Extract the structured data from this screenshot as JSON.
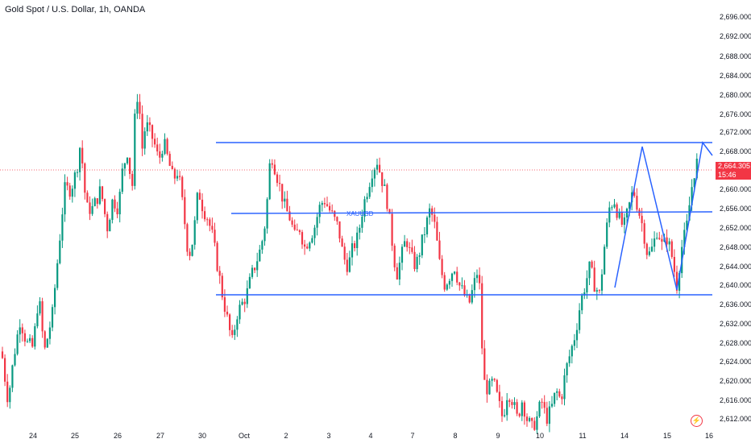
{
  "title": "Gold Spot / U.S. Dollar, 1h, OANDA",
  "last_price": "2,664.305",
  "countdown": "15:46",
  "annotation": "XAUUSD",
  "colors": {
    "up": "#089981",
    "down": "#f23645",
    "drawing": "#2962ff",
    "axis_text": "#131722"
  },
  "chart_data": {
    "type": "candlestick",
    "y_ticks": [
      "2,696.000",
      "2,692.000",
      "2,688.000",
      "2,684.000",
      "2,680.000",
      "2,676.000",
      "2,672.000",
      "2,668.000",
      "2,660.000",
      "2,656.000",
      "2,652.000",
      "2,648.000",
      "2,644.000",
      "2,640.000",
      "2,636.000",
      "2,632.000",
      "2,628.000",
      "2,624.000",
      "2,620.000",
      "2,616.000",
      "2,612.000"
    ],
    "x_ticks": [
      "24",
      "25",
      "26",
      "27",
      "30",
      "Oct",
      "2",
      "3",
      "4",
      "7",
      "8",
      "9",
      "10",
      "11",
      "14",
      "15",
      "16"
    ],
    "ylim": [
      2610,
      2698
    ],
    "horizontal_lines": [
      2668.4,
      2654.8,
      2637.8
    ],
    "zigzag": [
      [
        2639.2
      ],
      [
        2669
      ],
      [
        2639.2
      ],
      [
        2669
      ],
      [
        2666
      ]
    ],
    "anchors": [
      {
        "x": 0,
        "y": 2629
      },
      {
        "x": 5,
        "y": 2622
      },
      {
        "x": 10,
        "y": 2616
      },
      {
        "x": 18,
        "y": 2626
      },
      {
        "x": 25,
        "y": 2633
      },
      {
        "x": 33,
        "y": 2628
      },
      {
        "x": 41,
        "y": 2627
      },
      {
        "x": 48,
        "y": 2638
      },
      {
        "x": 55,
        "y": 2626
      },
      {
        "x": 65,
        "y": 2634
      },
      {
        "x": 73,
        "y": 2648
      },
      {
        "x": 80,
        "y": 2660
      },
      {
        "x": 88,
        "y": 2660
      },
      {
        "x": 95,
        "y": 2664
      },
      {
        "x": 100,
        "y": 2670
      },
      {
        "x": 107,
        "y": 2656
      },
      {
        "x": 115,
        "y": 2656
      },
      {
        "x": 125,
        "y": 2660
      },
      {
        "x": 133,
        "y": 2652
      },
      {
        "x": 140,
        "y": 2658
      },
      {
        "x": 147,
        "y": 2656
      },
      {
        "x": 152,
        "y": 2664
      },
      {
        "x": 158,
        "y": 2668
      },
      {
        "x": 164,
        "y": 2660
      },
      {
        "x": 168,
        "y": 2678
      },
      {
        "x": 172,
        "y": 2681
      },
      {
        "x": 176,
        "y": 2668
      },
      {
        "x": 181,
        "y": 2674
      },
      {
        "x": 186,
        "y": 2672
      },
      {
        "x": 191,
        "y": 2670
      },
      {
        "x": 197,
        "y": 2666
      },
      {
        "x": 203,
        "y": 2670
      },
      {
        "x": 209,
        "y": 2666
      },
      {
        "x": 215,
        "y": 2662
      },
      {
        "x": 221,
        "y": 2664
      },
      {
        "x": 228,
        "y": 2655
      },
      {
        "x": 234,
        "y": 2646
      },
      {
        "x": 240,
        "y": 2650
      },
      {
        "x": 246,
        "y": 2660
      },
      {
        "x": 252,
        "y": 2656
      },
      {
        "x": 258,
        "y": 2654
      },
      {
        "x": 264,
        "y": 2650
      },
      {
        "x": 270,
        "y": 2644
      },
      {
        "x": 276,
        "y": 2638
      },
      {
        "x": 282,
        "y": 2633
      },
      {
        "x": 288,
        "y": 2628
      },
      {
        "x": 294,
        "y": 2634
      },
      {
        "x": 300,
        "y": 2636
      },
      {
        "x": 306,
        "y": 2638
      },
      {
        "x": 312,
        "y": 2642
      },
      {
        "x": 318,
        "y": 2645
      },
      {
        "x": 324,
        "y": 2648
      },
      {
        "x": 330,
        "y": 2654
      },
      {
        "x": 336,
        "y": 2668
      },
      {
        "x": 342,
        "y": 2664
      },
      {
        "x": 348,
        "y": 2660
      },
      {
        "x": 354,
        "y": 2656
      },
      {
        "x": 360,
        "y": 2654
      },
      {
        "x": 366,
        "y": 2650
      },
      {
        "x": 372,
        "y": 2652
      },
      {
        "x": 378,
        "y": 2648
      },
      {
        "x": 384,
        "y": 2650
      },
      {
        "x": 390,
        "y": 2652
      },
      {
        "x": 396,
        "y": 2656
      },
      {
        "x": 402,
        "y": 2658
      },
      {
        "x": 408,
        "y": 2656
      },
      {
        "x": 414,
        "y": 2654
      },
      {
        "x": 420,
        "y": 2652
      },
      {
        "x": 426,
        "y": 2646
      },
      {
        "x": 432,
        "y": 2644
      },
      {
        "x": 438,
        "y": 2648
      },
      {
        "x": 444,
        "y": 2650
      },
      {
        "x": 450,
        "y": 2656
      },
      {
        "x": 456,
        "y": 2660
      },
      {
        "x": 462,
        "y": 2664
      },
      {
        "x": 468,
        "y": 2666
      },
      {
        "x": 474,
        "y": 2662
      },
      {
        "x": 480,
        "y": 2658
      },
      {
        "x": 486,
        "y": 2650
      },
      {
        "x": 492,
        "y": 2642
      },
      {
        "x": 498,
        "y": 2646
      },
      {
        "x": 504,
        "y": 2650
      },
      {
        "x": 510,
        "y": 2646
      },
      {
        "x": 516,
        "y": 2644
      },
      {
        "x": 522,
        "y": 2648
      },
      {
        "x": 528,
        "y": 2652
      },
      {
        "x": 534,
        "y": 2656
      },
      {
        "x": 540,
        "y": 2652
      },
      {
        "x": 546,
        "y": 2644
      },
      {
        "x": 552,
        "y": 2640
      },
      {
        "x": 558,
        "y": 2642
      },
      {
        "x": 564,
        "y": 2644
      },
      {
        "x": 570,
        "y": 2640
      },
      {
        "x": 576,
        "y": 2638
      },
      {
        "x": 582,
        "y": 2636
      },
      {
        "x": 588,
        "y": 2640
      },
      {
        "x": 594,
        "y": 2644
      },
      {
        "x": 600,
        "y": 2620
      },
      {
        "x": 606,
        "y": 2618
      },
      {
        "x": 612,
        "y": 2620
      },
      {
        "x": 618,
        "y": 2616
      },
      {
        "x": 624,
        "y": 2612
      },
      {
        "x": 630,
        "y": 2618
      },
      {
        "x": 636,
        "y": 2616
      },
      {
        "x": 642,
        "y": 2612
      },
      {
        "x": 648,
        "y": 2616
      },
      {
        "x": 654,
        "y": 2612
      },
      {
        "x": 660,
        "y": 2610
      },
      {
        "x": 666,
        "y": 2612
      },
      {
        "x": 672,
        "y": 2616
      },
      {
        "x": 678,
        "y": 2612
      },
      {
        "x": 684,
        "y": 2614
      },
      {
        "x": 690,
        "y": 2618
      },
      {
        "x": 696,
        "y": 2616
      },
      {
        "x": 702,
        "y": 2622
      },
      {
        "x": 708,
        "y": 2626
      },
      {
        "x": 714,
        "y": 2630
      },
      {
        "x": 720,
        "y": 2636
      },
      {
        "x": 726,
        "y": 2640
      },
      {
        "x": 732,
        "y": 2644
      },
      {
        "x": 738,
        "y": 2640
      },
      {
        "x": 744,
        "y": 2638
      },
      {
        "x": 750,
        "y": 2648
      },
      {
        "x": 756,
        "y": 2656
      },
      {
        "x": 762,
        "y": 2658
      },
      {
        "x": 768,
        "y": 2654
      },
      {
        "x": 774,
        "y": 2652
      },
      {
        "x": 780,
        "y": 2656
      },
      {
        "x": 786,
        "y": 2660
      },
      {
        "x": 792,
        "y": 2656
      },
      {
        "x": 798,
        "y": 2652
      },
      {
        "x": 804,
        "y": 2646
      },
      {
        "x": 810,
        "y": 2648
      },
      {
        "x": 816,
        "y": 2652
      },
      {
        "x": 822,
        "y": 2648
      },
      {
        "x": 828,
        "y": 2650
      },
      {
        "x": 834,
        "y": 2646
      },
      {
        "x": 840,
        "y": 2640
      },
      {
        "x": 846,
        "y": 2648
      },
      {
        "x": 852,
        "y": 2652
      },
      {
        "x": 858,
        "y": 2660
      },
      {
        "x": 864,
        "y": 2666
      },
      {
        "x": 868,
        "y": 2664
      }
    ]
  }
}
